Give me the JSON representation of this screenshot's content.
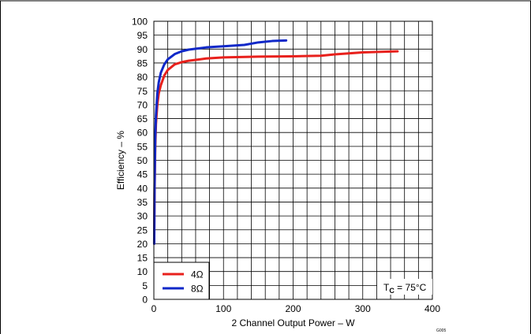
{
  "chart_data": {
    "type": "line",
    "xlabel": "2 Channel Output Power – W",
    "ylabel": "Efficiency – %",
    "xlim": [
      0,
      400
    ],
    "ylim": [
      0,
      100
    ],
    "x_ticks": [
      0,
      100,
      200,
      300,
      400
    ],
    "y_ticks": [
      0,
      5,
      10,
      15,
      20,
      25,
      30,
      35,
      40,
      45,
      50,
      55,
      60,
      65,
      70,
      75,
      80,
      85,
      90,
      95,
      100
    ],
    "grid": true,
    "legend_position": "bottom-left",
    "series": [
      {
        "name": "4Ω",
        "color": "#e8201c",
        "x": [
          0.5,
          1,
          2,
          3,
          5,
          7,
          10,
          15,
          20,
          30,
          40,
          50,
          75,
          100,
          150,
          200,
          240,
          260,
          300,
          350
        ],
        "y": [
          20,
          38,
          55,
          63,
          70,
          74,
          77,
          80.5,
          82.5,
          84.5,
          85.3,
          85.8,
          86.6,
          87.0,
          87.3,
          87.4,
          87.6,
          88.1,
          88.8,
          89.2
        ]
      },
      {
        "name": "8Ω",
        "color": "#1028c8",
        "x": [
          0.5,
          1,
          2,
          3,
          5,
          7,
          10,
          15,
          20,
          30,
          40,
          50,
          75,
          100,
          130,
          150,
          170,
          190
        ],
        "y": [
          20,
          40,
          58,
          66,
          74,
          78,
          81.5,
          84.5,
          86.3,
          88.2,
          89.2,
          89.8,
          90.6,
          91.0,
          91.5,
          92.4,
          92.9,
          93.1
        ]
      }
    ],
    "annotation": "T_C = 75°C",
    "annotation_main": "T",
    "annotation_sub": "C",
    "annotation_rest": " = 75°C",
    "figure_id": "G005"
  }
}
